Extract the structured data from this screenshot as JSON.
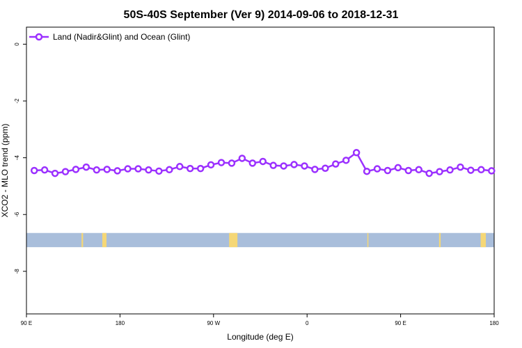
{
  "chart_data": {
    "type": "line",
    "title": "50S-40S September (Ver 9)   2014-09-06 to 2018-12-31",
    "xlabel": "Longitude (deg E)",
    "ylabel": "XCO2 - MLO trend (ppm)",
    "x_ticks": [
      {
        "pos": 90,
        "label": "90 E"
      },
      {
        "pos": 180,
        "label": "180"
      },
      {
        "pos": 270,
        "label": "90 W"
      },
      {
        "pos": 360,
        "label": "0"
      },
      {
        "pos": 450,
        "label": "90 E"
      },
      {
        "pos": 540,
        "label": "180"
      }
    ],
    "xlim": [
      90,
      540
    ],
    "y_ticks": [
      0,
      -2,
      -4,
      -6,
      -8
    ],
    "ylim": [
      -9.5,
      0.6
    ],
    "grid": false,
    "legend_position": "top-left",
    "series": [
      {
        "name": "Land (Nadir&Glint) and Ocean (Glint)",
        "color": "#9b30ff",
        "x": [
          97.5,
          107.5,
          117.5,
          127.5,
          137.5,
          147.5,
          157.5,
          167.5,
          177.5,
          187.5,
          197.5,
          207.5,
          217.5,
          227.5,
          237.5,
          247.5,
          257.5,
          267.5,
          277.5,
          287.5,
          297.5,
          307.5,
          317.5,
          327.5,
          337.5,
          347.5,
          357.5,
          367.5,
          377.5,
          387.5,
          397.5,
          407.5,
          417.5,
          427.5,
          437.5,
          447.5,
          457.5,
          467.5,
          477.5,
          487.5,
          497.5,
          507.5,
          517.5,
          527.5,
          537.5
        ],
        "values": [
          -4.45,
          -4.43,
          -4.55,
          -4.49,
          -4.41,
          -4.33,
          -4.43,
          -4.41,
          -4.46,
          -4.39,
          -4.39,
          -4.43,
          -4.47,
          -4.42,
          -4.31,
          -4.38,
          -4.38,
          -4.25,
          -4.17,
          -4.19,
          -4.02,
          -4.19,
          -4.13,
          -4.27,
          -4.29,
          -4.24,
          -4.29,
          -4.41,
          -4.37,
          -4.22,
          -4.09,
          -3.82,
          -4.48,
          -4.39,
          -4.45,
          -4.35,
          -4.45,
          -4.42,
          -4.55,
          -4.49,
          -4.43,
          -4.33,
          -4.44,
          -4.42,
          -4.46
        ]
      }
    ],
    "land_band": {
      "y_range": [
        -7.15,
        -6.65
      ],
      "ocean_color": "#a9bedb",
      "land_color": "#f5d776",
      "land_segments": [
        [
          143,
          144.5
        ],
        [
          163,
          167
        ],
        [
          285,
          293
        ],
        [
          418,
          419
        ],
        [
          487,
          488.5
        ],
        [
          527,
          532
        ]
      ]
    }
  }
}
